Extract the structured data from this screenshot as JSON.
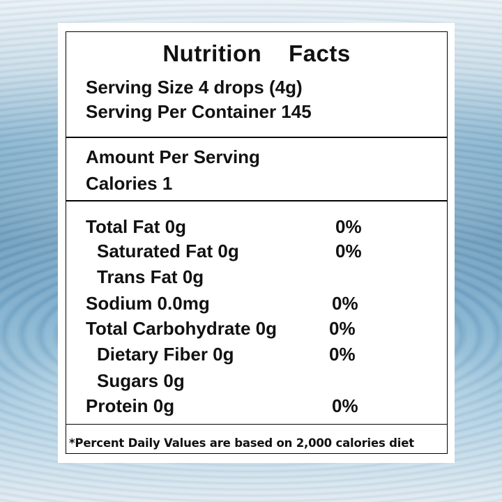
{
  "label": {
    "title": "Nutrition    Facts",
    "serving_size": "Serving Size 4 drops (4g)",
    "servings_per_container": "Serving Per Container 145",
    "amount_per_serving": "Amount Per Serving",
    "calories": "Calories 1",
    "nutrients": [
      {
        "name": "Total Fat 0g",
        "dv": "0%"
      },
      {
        "name": "Saturated Fat 0g",
        "dv": "0%"
      },
      {
        "name": "Trans Fat 0g",
        "dv": ""
      },
      {
        "name": "Sodium 0.0mg",
        "dv": "0%"
      },
      {
        "name": "Total Carbohydrate 0g",
        "dv": "0%"
      },
      {
        "name": "Dietary Fiber 0g",
        "dv": "0%"
      },
      {
        "name": "Sugars 0g",
        "dv": ""
      },
      {
        "name": "Protein 0g",
        "dv": "0%"
      }
    ],
    "footnote": "*Percent Daily Values are based on 2,000 calories diet"
  }
}
